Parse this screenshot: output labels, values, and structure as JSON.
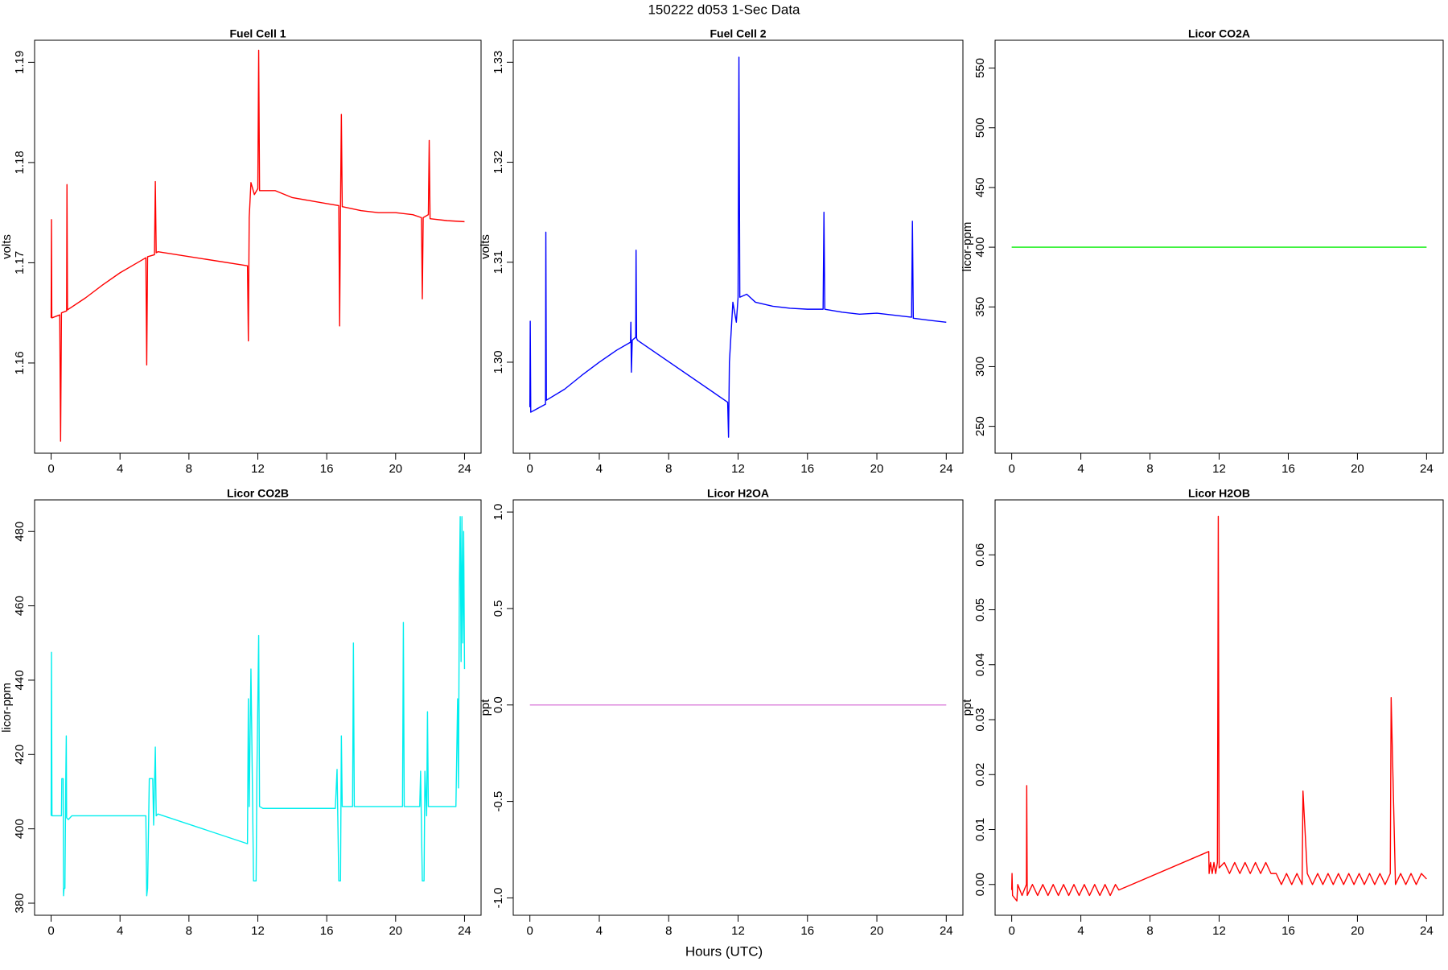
{
  "title": "150222   d053   1-Sec Data",
  "xlabel": "Hours (UTC)",
  "chart_data": [
    {
      "type": "line",
      "title": "Fuel Cell 1",
      "ylabel": "volts",
      "color": "#ff0000",
      "x": [
        0,
        0.02,
        0.04,
        0.5,
        0.55,
        0.6,
        0.9,
        0.92,
        0.95,
        2,
        3,
        4,
        5,
        5.5,
        5.55,
        5.6,
        6,
        6.05,
        6.1,
        6.2,
        11.4,
        11.45,
        11.5,
        11.6,
        11.8,
        12.0,
        12.05,
        12.1,
        13,
        14,
        15,
        16,
        16.7,
        16.75,
        16.8,
        16.85,
        16.9,
        18,
        19,
        20,
        21,
        21.5,
        21.55,
        21.6,
        21.9,
        21.95,
        22,
        23,
        24
      ],
      "values": [
        1.1645,
        1.1743,
        1.1645,
        1.1648,
        1.1522,
        1.165,
        1.1652,
        1.1778,
        1.1653,
        1.1665,
        1.1678,
        1.169,
        1.17,
        1.1705,
        1.1598,
        1.1706,
        1.1708,
        1.1781,
        1.171,
        1.1711,
        1.1697,
        1.1622,
        1.1745,
        1.178,
        1.1768,
        1.1774,
        1.1912,
        1.1772,
        1.1772,
        1.1765,
        1.1762,
        1.1759,
        1.1757,
        1.1637,
        1.1757,
        1.1848,
        1.1756,
        1.1752,
        1.175,
        1.175,
        1.1748,
        1.1745,
        1.1664,
        1.1745,
        1.1748,
        1.1822,
        1.1744,
        1.1742,
        1.1741
      ],
      "xlim": [
        -0.96,
        24.96
      ],
      "xticks": [
        0,
        4,
        8,
        12,
        16,
        20,
        24
      ],
      "ylim": [
        1.151,
        1.1922
      ],
      "yticks": [
        1.16,
        1.17,
        1.18,
        1.19
      ]
    },
    {
      "type": "line",
      "title": "Fuel Cell 2",
      "ylabel": "volts",
      "color": "#0000ff",
      "x": [
        0,
        0.02,
        0.05,
        0.9,
        0.92,
        0.95,
        2,
        3,
        4,
        5,
        5.8,
        5.82,
        5.85,
        5.9,
        6.1,
        6.12,
        6.15,
        6.2,
        11.4,
        11.45,
        11.5,
        11.7,
        11.9,
        12.0,
        12.05,
        12.1,
        12.5,
        13,
        14,
        15,
        16,
        16.9,
        16.95,
        17,
        18,
        19,
        20,
        21,
        22,
        22.05,
        22.1,
        23,
        24
      ],
      "values": [
        1.2955,
        1.3041,
        1.295,
        1.2958,
        1.313,
        1.2962,
        1.2973,
        1.2987,
        1.3,
        1.3012,
        1.302,
        1.304,
        1.299,
        1.3022,
        1.3025,
        1.3112,
        1.3024,
        1.3022,
        1.296,
        1.2925,
        1.3,
        1.306,
        1.304,
        1.3065,
        1.3305,
        1.3065,
        1.3068,
        1.306,
        1.3056,
        1.3054,
        1.3053,
        1.3053,
        1.315,
        1.3053,
        1.305,
        1.3048,
        1.3049,
        1.3047,
        1.3045,
        1.3141,
        1.3044,
        1.3042,
        1.304
      ],
      "xlim": [
        -0.96,
        24.96
      ],
      "xticks": [
        0,
        4,
        8,
        12,
        16,
        20,
        24
      ],
      "ylim": [
        1.2909,
        1.3322
      ],
      "yticks": [
        {
          "value": 1.3,
          "label": "1.30"
        },
        1.31,
        1.32,
        1.33
      ]
    },
    {
      "type": "line",
      "title": "Licor CO2A",
      "ylabel": "licor-ppm",
      "color": "#00ee00",
      "x": [
        0,
        24
      ],
      "values": [
        400,
        400
      ],
      "xlim": [
        -0.96,
        24.96
      ],
      "xticks": [
        0,
        4,
        8,
        12,
        16,
        20,
        24
      ],
      "ylim": [
        227.5,
        573.3
      ],
      "yticks": [
        250,
        300,
        350,
        400,
        450,
        500,
        550
      ]
    },
    {
      "type": "line",
      "title": "Licor CO2B",
      "ylabel": "licor-ppm",
      "color": "#00eeee",
      "x": [
        0,
        0.02,
        0.05,
        0.6,
        0.62,
        0.7,
        0.72,
        0.75,
        0.8,
        0.85,
        0.88,
        0.9,
        1.0,
        1.2,
        5.5,
        5.55,
        5.6,
        5.7,
        5.9,
        5.95,
        6.05,
        6.1,
        6.2,
        11.4,
        11.45,
        11.5,
        11.6,
        11.7,
        11.75,
        11.9,
        11.95,
        12.05,
        12.1,
        12.3,
        16.5,
        16.6,
        16.65,
        16.7,
        16.8,
        16.85,
        16.9,
        17.5,
        17.55,
        17.6,
        20.4,
        20.45,
        20.5,
        21.4,
        21.45,
        21.55,
        21.65,
        21.7,
        21.8,
        21.85,
        21.9,
        23.5,
        23.6,
        23.65,
        23.7,
        23.75,
        23.8,
        23.85,
        23.9,
        23.95,
        24
      ],
      "values": [
        403.5,
        447.5,
        403.5,
        403.5,
        413.5,
        413.5,
        382,
        384,
        384,
        413,
        425,
        403,
        402.5,
        403.5,
        403.5,
        382,
        384,
        413.5,
        413.5,
        401,
        422,
        403.5,
        404,
        396,
        435,
        406,
        443,
        406,
        386,
        386,
        416,
        452,
        406,
        405.5,
        405.5,
        416,
        401,
        386,
        386,
        425,
        406,
        406,
        450,
        406,
        406,
        455.5,
        406,
        406,
        415.5,
        386,
        386,
        415.5,
        403.5,
        431.5,
        406,
        406,
        435,
        411,
        465,
        484,
        445,
        484,
        450,
        480,
        443
      ],
      "xlim": [
        -0.96,
        24.96
      ],
      "xticks": [
        0,
        4,
        8,
        12,
        16,
        20,
        24
      ],
      "ylim": [
        376.75,
        488.5
      ],
      "yticks": [
        380,
        400,
        420,
        440,
        460,
        480
      ]
    },
    {
      "type": "line",
      "title": "Licor H2OA",
      "ylabel": "ppt",
      "color": "#dd88dd",
      "x": [
        0,
        24
      ],
      "values": [
        0,
        0
      ],
      "xlim": [
        -0.96,
        24.96
      ],
      "xticks": [
        0,
        4,
        8,
        12,
        16,
        20,
        24
      ],
      "ylim": [
        -1.09,
        1.063
      ],
      "yticks": [
        {
          "value": -1,
          "label": "-1.0"
        },
        -0.5,
        {
          "value": 0,
          "label": "0.0"
        },
        0.5,
        {
          "value": 1,
          "label": "1.0"
        }
      ]
    },
    {
      "type": "line",
      "title": "Licor H2OB",
      "ylabel": "ppt",
      "color": "#ff0000",
      "x": [
        0,
        0.02,
        0.05,
        0.3,
        0.35,
        0.6,
        0.85,
        0.87,
        0.9,
        1.2,
        1.5,
        1.8,
        2.1,
        2.4,
        2.7,
        3.0,
        3.3,
        3.6,
        3.9,
        4.2,
        4.5,
        4.8,
        5.1,
        5.4,
        5.7,
        6.0,
        6.2,
        11.4,
        11.42,
        11.5,
        11.6,
        11.7,
        11.8,
        11.9,
        11.95,
        12.0,
        12.3,
        12.6,
        12.9,
        13.2,
        13.5,
        13.8,
        14.1,
        14.4,
        14.7,
        15.0,
        15.3,
        15.6,
        15.9,
        16.2,
        16.5,
        16.8,
        16.85,
        17.1,
        17.4,
        17.7,
        18.0,
        18.3,
        18.6,
        18.9,
        19.2,
        19.5,
        19.8,
        20.1,
        20.4,
        20.7,
        21.0,
        21.3,
        21.6,
        21.9,
        21.95,
        22.2,
        22.5,
        22.8,
        23.1,
        23.4,
        23.7,
        24
      ],
      "values": [
        -0.001,
        0.002,
        -0.002,
        -0.003,
        0,
        -0.002,
        0,
        0.018,
        -0.002,
        0,
        -0.002,
        0,
        -0.002,
        0,
        -0.002,
        0,
        -0.002,
        0,
        -0.002,
        0,
        -0.002,
        0,
        -0.002,
        0,
        -0.002,
        0,
        -0.001,
        0.006,
        0.002,
        0.004,
        0.002,
        0.004,
        0.002,
        0.004,
        0.067,
        0.003,
        0.004,
        0.002,
        0.004,
        0.002,
        0.004,
        0.002,
        0.004,
        0.002,
        0.004,
        0.002,
        0.002,
        0,
        0.002,
        0,
        0.002,
        0,
        0.017,
        0.002,
        0,
        0.002,
        0,
        0.002,
        0,
        0.002,
        0,
        0.002,
        0,
        0.002,
        0,
        0.002,
        0,
        0.002,
        0,
        0.002,
        0.034,
        0,
        0.002,
        0,
        0.002,
        0,
        0.002,
        0.001
      ],
      "xlim": [
        -0.96,
        24.96
      ],
      "xticks": [
        0,
        4,
        8,
        12,
        16,
        20,
        24
      ],
      "ylim": [
        -0.0056,
        0.07
      ],
      "yticks": [
        {
          "value": 0,
          "label": "0.00"
        },
        0.01,
        0.02,
        0.03,
        0.04,
        0.05,
        0.06
      ]
    }
  ]
}
